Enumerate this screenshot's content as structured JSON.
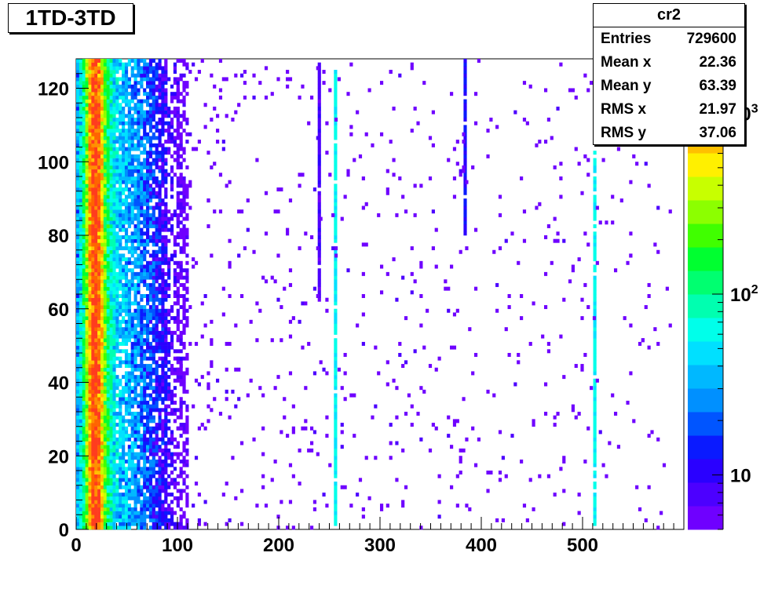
{
  "canvas_title": "1TD-3TD",
  "stats": {
    "name": "cr2",
    "rows": [
      {
        "key": "Entries",
        "value": "729600"
      },
      {
        "key": "Mean x",
        "value": "22.36"
      },
      {
        "key": "Mean y",
        "value": "63.39"
      },
      {
        "key": "RMS x",
        "value": "21.97"
      },
      {
        "key": "RMS y",
        "value": "37.06"
      }
    ]
  },
  "chart_data": {
    "type": "heatmap",
    "title": "1TD-3TD",
    "xlabel": "",
    "ylabel": "",
    "xlim": [
      0,
      600
    ],
    "ylim": [
      0,
      128
    ],
    "x_ticks": [
      0,
      100,
      200,
      300,
      400,
      500
    ],
    "y_ticks": [
      0,
      20,
      40,
      60,
      80,
      100,
      120
    ],
    "z_scale": "log",
    "z_range": [
      5,
      2000
    ],
    "z_ticks": [
      {
        "value": 10,
        "label": "10"
      },
      {
        "value": 100,
        "label": "10",
        "exponent": "2"
      },
      {
        "value": 1000,
        "label": "10",
        "exponent": "3"
      }
    ],
    "palette": [
      "#6f00ff",
      "#4c00ff",
      "#2a00ff",
      "#0a1aff",
      "#0055ff",
      "#0090ff",
      "#00b8ff",
      "#00e0ff",
      "#00ffea",
      "#00ffb0",
      "#00ff70",
      "#00ff30",
      "#40ff00",
      "#8cff00",
      "#c8ff00",
      "#fff000",
      "#ffc000",
      "#ff9000",
      "#ff6400",
      "#ff3c1e"
    ],
    "band_profile": [
      {
        "x": 1.5,
        "z": 35
      },
      {
        "x": 4.5,
        "z": 60
      },
      {
        "x": 7.5,
        "z": 120
      },
      {
        "x": 10.5,
        "z": 300
      },
      {
        "x": 13.5,
        "z": 800
      },
      {
        "x": 16.5,
        "z": 1600
      },
      {
        "x": 19.5,
        "z": 1800
      },
      {
        "x": 22.5,
        "z": 1200
      },
      {
        "x": 25.5,
        "z": 600
      },
      {
        "x": 28.5,
        "z": 250
      },
      {
        "x": 31.5,
        "z": 120
      },
      {
        "x": 34.5,
        "z": 80
      },
      {
        "x": 37.5,
        "z": 60
      },
      {
        "x": 40.5,
        "z": 50
      },
      {
        "x": 43.5,
        "z": 45
      },
      {
        "x": 46.5,
        "z": 40
      },
      {
        "x": 49.5,
        "z": 38
      },
      {
        "x": 52.5,
        "z": 35
      },
      {
        "x": 55.5,
        "z": 32
      },
      {
        "x": 58.5,
        "z": 30
      },
      {
        "x": 61.5,
        "z": 28
      },
      {
        "x": 64.5,
        "z": 25
      },
      {
        "x": 67.5,
        "z": 22
      },
      {
        "x": 70.5,
        "z": 20
      },
      {
        "x": 73.5,
        "z": 18
      },
      {
        "x": 76.5,
        "z": 16
      },
      {
        "x": 79.5,
        "z": 14
      },
      {
        "x": 82.5,
        "z": 12
      },
      {
        "x": 85.5,
        "z": 11
      },
      {
        "x": 88.5,
        "z": 10
      },
      {
        "x": 91.5,
        "z": 9
      },
      {
        "x": 94.5,
        "z": 8
      },
      {
        "x": 97.5,
        "z": 7
      },
      {
        "x": 100.5,
        "z": 6
      },
      {
        "x": 103.5,
        "z": 6
      },
      {
        "x": 106.5,
        "z": 5
      },
      {
        "x": 109.5,
        "z": 5
      }
    ],
    "vertical_lines": [
      {
        "x": 240,
        "z": 8,
        "y_range": [
          62,
          127
        ]
      },
      {
        "x": 256,
        "z": 60,
        "y_range": [
          1,
          125
        ]
      },
      {
        "x": 384,
        "z": 12,
        "y_range": [
          80,
          128
        ]
      },
      {
        "x": 512,
        "z": 60,
        "y_range": [
          1,
          103
        ]
      }
    ],
    "sparse_hits": {
      "x_range": [
        100,
        590
      ],
      "approx_count": 700,
      "z": 5
    }
  }
}
